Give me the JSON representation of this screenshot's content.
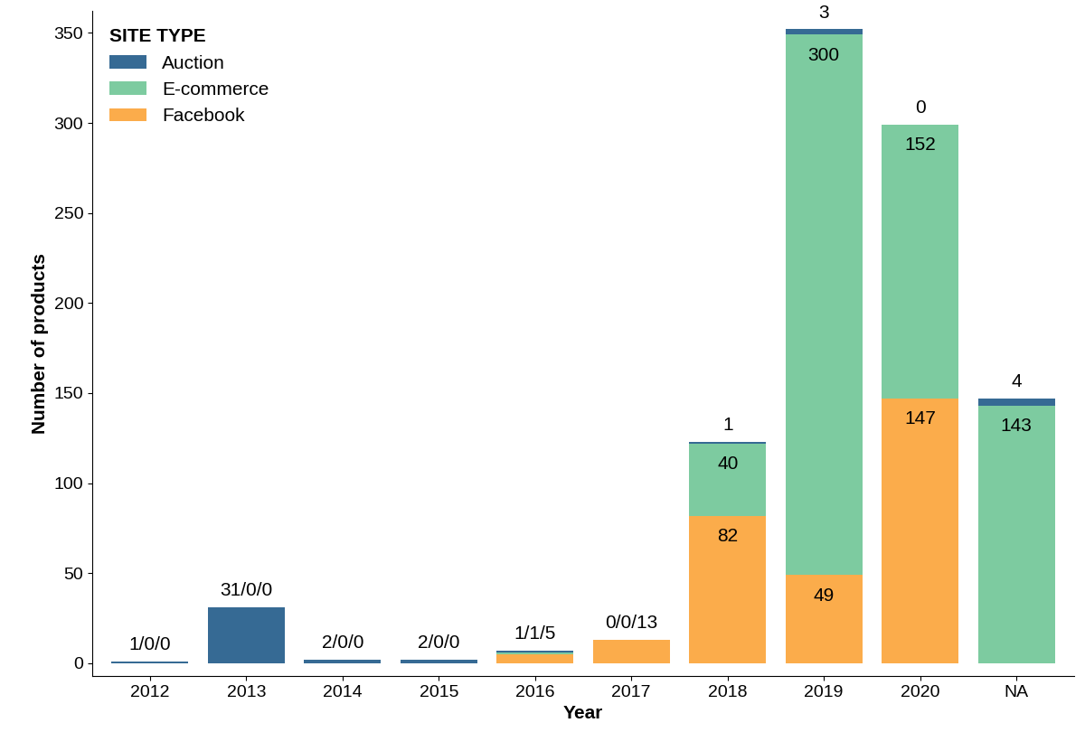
{
  "chart_data": {
    "type": "bar",
    "stacked": true,
    "x_label": "Year",
    "y_label": "Number of products",
    "categories": [
      "2012",
      "2013",
      "2014",
      "2015",
      "2016",
      "2017",
      "2018",
      "2019",
      "2020",
      "NA"
    ],
    "series": [
      {
        "name": "Auction",
        "color": "#366a94",
        "values": [
          1,
          31,
          2,
          2,
          1,
          0,
          1,
          3,
          0,
          4
        ],
        "value_labels": [
          null,
          null,
          null,
          null,
          null,
          null,
          "1",
          "3",
          "0",
          "4"
        ]
      },
      {
        "name": "E-commerce",
        "color": "#7dcba0",
        "values": [
          0,
          0,
          0,
          0,
          1,
          0,
          40,
          300,
          152,
          143
        ],
        "value_labels": [
          null,
          null,
          null,
          null,
          null,
          null,
          "40",
          "300",
          "152",
          "143"
        ]
      },
      {
        "name": "Facebook",
        "color": "#fbac4b",
        "values": [
          0,
          0,
          0,
          0,
          5,
          13,
          82,
          49,
          147,
          0
        ],
        "value_labels": [
          null,
          null,
          null,
          null,
          null,
          null,
          "82",
          "49",
          "147",
          null
        ]
      }
    ],
    "annotations": [
      {
        "category": "2012",
        "text": "1/0/0"
      },
      {
        "category": "2013",
        "text": "31/0/0"
      },
      {
        "category": "2014",
        "text": "2/0/0"
      },
      {
        "category": "2015",
        "text": "2/0/0"
      },
      {
        "category": "2016",
        "text": "1/1/5"
      },
      {
        "category": "2017",
        "text": "0/0/13"
      }
    ],
    "legend_title": "SITE TYPE",
    "legend": "upper left",
    "data_labels": true,
    "ylim": [
      -7,
      362
    ],
    "yticks": [
      0,
      50,
      100,
      150,
      200,
      250,
      300,
      350
    ],
    "grid": false
  }
}
